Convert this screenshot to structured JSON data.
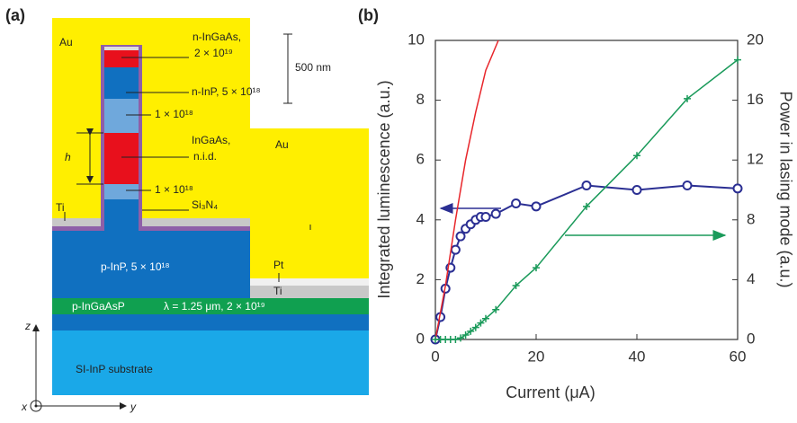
{
  "panel_labels": [
    "(a)",
    "(b)"
  ],
  "diagram": {
    "labels": {
      "au_left": "Au",
      "au_right": "Au",
      "n_ingaas_1": "n-InGaAs,",
      "n_ingaas_2": "2 × 10¹⁹",
      "n_inp": "n-InP, 5 × 10¹⁸",
      "doping_upper": "1 × 10¹⁸",
      "h": "h",
      "ingaas_1": "InGaAs,",
      "ingaas_2": "n.i.d.",
      "doping_lower": "1 × 10¹⁸",
      "si3n4": "Si₃N₄",
      "ti_left": "Ti",
      "scale": "500 nm",
      "p_inp": "p-InP, 5 × 10¹⁸",
      "pt": "Pt",
      "ti_right": "Ti",
      "p_ingaasp": "p-InGaAsP",
      "p_ingaasp_params": "λ = 1.25 μm, 2 × 10¹⁹",
      "substrate": "SI-InP substrate",
      "axis_z": "z",
      "axis_x": "x",
      "axis_y": "y"
    }
  },
  "chart_data": {
    "type": "line",
    "xlabel": "Current (μA)",
    "ylabel": "Integrated luminescence (a.u.)",
    "y2label": "Power in lasing mode (a.u.)",
    "xlim": [
      0,
      60
    ],
    "ylim": [
      0,
      10
    ],
    "y2lim": [
      0,
      20
    ],
    "xticks": [
      0,
      20,
      40,
      60
    ],
    "yticks": [
      0,
      2,
      4,
      6,
      8,
      10
    ],
    "y2ticks": [
      0,
      4,
      8,
      12,
      16,
      20
    ],
    "grid": false,
    "series": [
      {
        "color": "#2b2f93",
        "marker": "circle",
        "x": [
          0,
          1,
          2,
          3,
          4,
          5,
          6,
          7,
          8,
          9,
          10,
          12,
          16,
          20,
          30,
          40,
          50,
          60
        ],
        "values": [
          0,
          0.75,
          1.7,
          2.4,
          3.0,
          3.45,
          3.7,
          3.85,
          4.0,
          4.1,
          4.1,
          4.2,
          4.55,
          4.45,
          5.15,
          5.0,
          5.15,
          5.05
        ]
      },
      {
        "color": "#e8262b",
        "marker": "none",
        "x": [
          0,
          2,
          4,
          6,
          8,
          10,
          12.5
        ],
        "values": [
          0,
          1.8,
          4.0,
          6.0,
          7.6,
          9.0,
          10
        ]
      },
      {
        "color": "#1a9a5a",
        "marker": "plus",
        "axis": "y2",
        "x": [
          0,
          1,
          2,
          3,
          4,
          5,
          6,
          7,
          8,
          9,
          10,
          12,
          16,
          20,
          30,
          40,
          50,
          60
        ],
        "values": [
          0,
          0,
          0,
          0,
          0,
          0.1,
          0.3,
          0.55,
          0.8,
          1.1,
          1.4,
          2.0,
          3.6,
          4.8,
          8.9,
          12.3,
          16.1,
          18.7
        ]
      }
    ]
  }
}
